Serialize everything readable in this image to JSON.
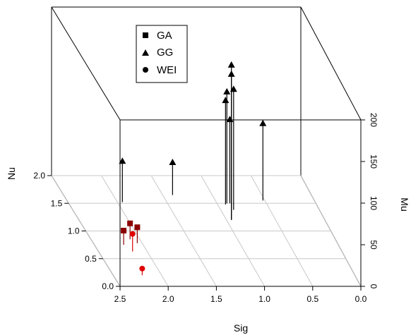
{
  "chart_data": {
    "type": "scatter3d",
    "title": "",
    "axes": {
      "x": {
        "label": "Sig",
        "range": [
          0.0,
          2.5
        ],
        "ticks": [
          "2.5",
          "2.0",
          "1.5",
          "1.0",
          "0.5",
          "0.0"
        ]
      },
      "y": {
        "label": "Nu",
        "range": [
          0.0,
          2.0
        ],
        "ticks": [
          "0.0",
          "0.5",
          "1.0",
          "1.5",
          "2.0"
        ]
      },
      "z": {
        "label": "Mu",
        "range": [
          0,
          200
        ],
        "ticks": [
          "0",
          "50",
          "100",
          "150",
          "200"
        ]
      }
    },
    "grid": true,
    "box": true,
    "legend": {
      "position": "top-left",
      "entries": [
        "GA",
        "GG",
        "WEI"
      ]
    },
    "series": [
      {
        "name": "GA",
        "marker": "square",
        "color": "#8b0000",
        "points": [
          {
            "x": 2.1,
            "y": 0.85,
            "z": 19
          },
          {
            "x": 2.05,
            "y": 0.78,
            "z": 19
          },
          {
            "x": 2.2,
            "y": 0.75,
            "z": 17
          }
        ]
      },
      {
        "name": "GG",
        "marker": "triangle",
        "color": "#000000",
        "points": [
          {
            "x": 1.95,
            "y": 1.52,
            "z": 49
          },
          {
            "x": 1.4,
            "y": 1.65,
            "z": 39
          },
          {
            "x": 0.95,
            "y": 1.2,
            "z": 185
          },
          {
            "x": 0.95,
            "y": 1.2,
            "z": 174
          },
          {
            "x": 0.87,
            "y": 1.38,
            "z": 144
          },
          {
            "x": 0.9,
            "y": 1.5,
            "z": 133
          },
          {
            "x": 0.92,
            "y": 1.48,
            "z": 124
          },
          {
            "x": 0.87,
            "y": 1.5,
            "z": 100
          },
          {
            "x": 0.52,
            "y": 1.55,
            "z": 92
          }
        ]
      },
      {
        "name": "WEI",
        "marker": "circle",
        "color": "#e00000",
        "points": [
          {
            "x": 2.15,
            "y": 0.63,
            "z": 21
          },
          {
            "x": 2.2,
            "y": 0.2,
            "z": 8
          }
        ]
      }
    ]
  }
}
